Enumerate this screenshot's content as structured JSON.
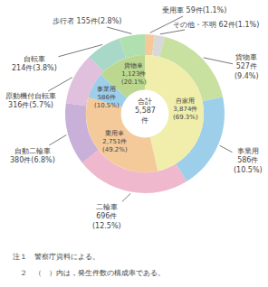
{
  "chart_data": {
    "type": "pie",
    "center_text": "合計\n5,587\n件",
    "annotations": [
      "注１　警察庁資料による。",
      "　２　（　）内は，発生件数の構成率である。"
    ],
    "series": [
      {
        "labels": [
          "乗用車 59件(1.1%)",
          "その他・不明 62件(1.1%)",
          "貨物車\n527件\n(9.4%)",
          "事業用\n586件\n(10.5%)",
          "二輪車\n696件\n(12.5%)",
          "自動二輪車\n380件(6.8%)",
          "原動機付自転車\n316件(5.7%)",
          "自転車\n214件(3.8%)",
          "歩行者 155件(2.8%)"
        ],
        "values": [
          59,
          62,
          527,
          586,
          696,
          380,
          316,
          214,
          155
        ],
        "colors": [
          "#f5ca9a",
          "#d8d8d8",
          "#c8e0a0",
          "#9ecfea",
          "#f0b8cc",
          "#c8b0d8",
          "#e0c0dc",
          "#a8d8c8",
          "#b0e0b0"
        ]
      },
      {
        "labels": [
          "自家用\n3,874件\n(69.3%)",
          "乗用車\n2,751件\n(49.2%)",
          "事業用\n586件\n(10.5%)",
          "貨物車\n1,123件\n(20.1%)"
        ],
        "values": [
          3874,
          2751,
          586,
          1123
        ],
        "colors": [
          "#f0eeaa",
          "#f5ca9a",
          "#9ecfea",
          "#bcd890"
        ]
      }
    ]
  }
}
